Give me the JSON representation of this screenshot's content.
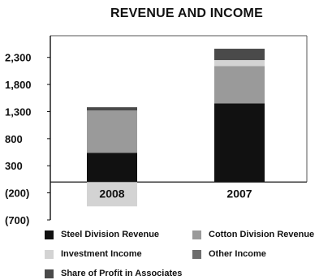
{
  "chart_data": {
    "type": "bar",
    "stacked": true,
    "title": "REVENUE AND INCOME",
    "xlabel": "",
    "ylabel": "",
    "categories": [
      "2008",
      "2007"
    ],
    "ylim": [
      -700,
      2700
    ],
    "yticks": [
      {
        "value": 2300,
        "label": "2,300"
      },
      {
        "value": 1800,
        "label": "1,800"
      },
      {
        "value": 1300,
        "label": "1,300"
      },
      {
        "value": 800,
        "label": "800"
      },
      {
        "value": 300,
        "label": "300"
      },
      {
        "value": -200,
        "label": "(200)"
      },
      {
        "value": -700,
        "label": "(700)"
      }
    ],
    "grid": false,
    "legend_position": "bottom",
    "series": [
      {
        "name": "Steel Division Revenue",
        "color": "#111111",
        "values": [
          540,
          1450
        ]
      },
      {
        "name": "Cotton Division Revenue",
        "color": "#9a9a9a",
        "values": [
          780,
          690
        ]
      },
      {
        "name": "Investment Income",
        "color": "#d3d3d3",
        "values": [
          -450,
          110
        ]
      },
      {
        "name": "Other Income",
        "color": "#6e6e6e",
        "values": [
          0,
          0
        ]
      },
      {
        "name": "Share of Profit in Associates",
        "color": "#4a4a4a",
        "values": [
          60,
          210
        ]
      }
    ]
  }
}
